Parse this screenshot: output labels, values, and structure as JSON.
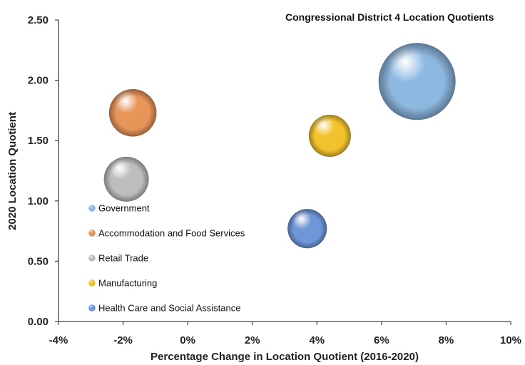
{
  "chart_data": {
    "type": "bubble",
    "title": "Congressional District 4 Location Quotients",
    "xlabel": "Percentage Change in Location Quotient (2016-2020)",
    "ylabel": "2020 Location Quotient",
    "xlim": [
      -4,
      10
    ],
    "ylim": [
      0,
      2.5
    ],
    "x_ticks": [
      "-4%",
      "-2%",
      "0%",
      "2%",
      "4%",
      "6%",
      "8%",
      "10%"
    ],
    "y_ticks": [
      "0.00",
      "0.50",
      "1.00",
      "1.50",
      "2.00",
      "2.50"
    ],
    "grid": false,
    "legend_position": "bottom-left inside plot",
    "series": [
      {
        "name": "Government",
        "x": 7.1,
        "y": 1.99,
        "size": 1.0,
        "color": "#8db8e0"
      },
      {
        "name": "Accommodation and Food Services",
        "x": -1.7,
        "y": 1.73,
        "size": 0.38,
        "color": "#e8955a"
      },
      {
        "name": "Retail Trade",
        "x": -1.9,
        "y": 1.18,
        "size": 0.34,
        "color": "#bdbdbd"
      },
      {
        "name": "Manufacturing",
        "x": 4.4,
        "y": 1.54,
        "size": 0.3,
        "color": "#f2c22e"
      },
      {
        "name": "Health Care and Social Assistance",
        "x": 3.7,
        "y": 0.77,
        "size": 0.26,
        "color": "#6f96d6"
      }
    ]
  }
}
